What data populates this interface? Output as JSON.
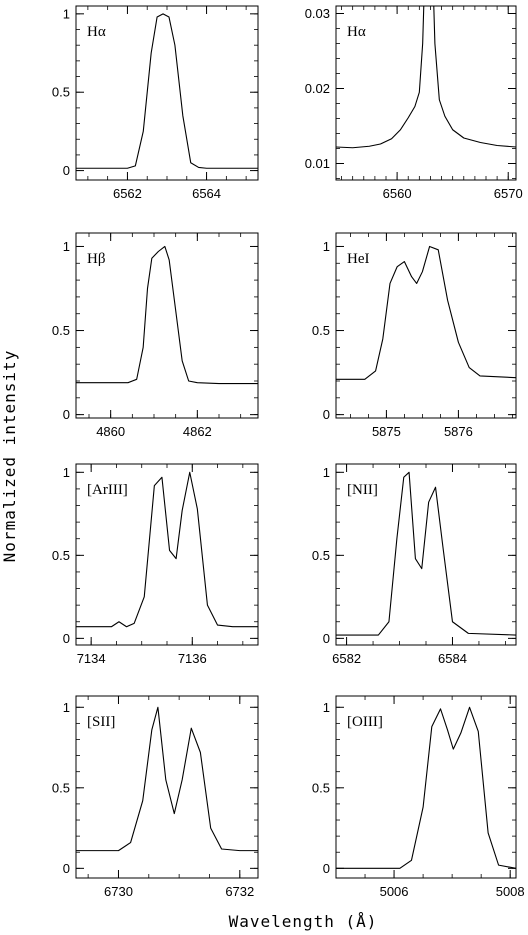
{
  "figure": {
    "ylabel": "Normalized intensity",
    "xlabel": "Wavelength (Å)"
  },
  "chart_data": [
    {
      "type": "line",
      "label": "Hα",
      "xlim": [
        6560.7,
        6565.3
      ],
      "ylim": [
        -0.06,
        1.05
      ],
      "xticks": [
        6562,
        6564
      ],
      "yticks": [
        0,
        0.5,
        1
      ],
      "ytick_labels": [
        "0",
        "0.5",
        "1"
      ],
      "x_minor": 0.5,
      "y_minor": 0.1,
      "x": [
        6560.7,
        6562.0,
        6562.2,
        6562.4,
        6562.6,
        6562.75,
        6562.9,
        6563.05,
        6563.2,
        6563.4,
        6563.6,
        6563.8,
        6564.0,
        6565.3
      ],
      "y": [
        0.015,
        0.015,
        0.03,
        0.25,
        0.75,
        0.98,
        1.0,
        0.98,
        0.8,
        0.35,
        0.05,
        0.02,
        0.015,
        0.015
      ]
    },
    {
      "type": "line",
      "label": "Hα",
      "xlim": [
        6554.5,
        6570.7
      ],
      "ylim": [
        0.0078,
        0.031
      ],
      "xticks": [
        6560,
        6570
      ],
      "yticks": [
        0.01,
        0.02,
        0.03
      ],
      "ytick_labels": [
        "0.01",
        "0.02",
        "0.03"
      ],
      "x_minor": 1,
      "y_minor": 0.002,
      "x": [
        6554.5,
        6556,
        6557.5,
        6558.5,
        6559.5,
        6560.3,
        6561.0,
        6561.6,
        6562.0,
        6562.3,
        6562.4,
        6563.3,
        6563.4,
        6563.8,
        6564.3,
        6565,
        6566,
        6567.5,
        6569,
        6570.7
      ],
      "y": [
        0.0122,
        0.0121,
        0.0123,
        0.0126,
        0.0133,
        0.0145,
        0.0161,
        0.0176,
        0.0195,
        0.026,
        0.031,
        0.031,
        0.026,
        0.0185,
        0.0163,
        0.0145,
        0.0134,
        0.0128,
        0.0124,
        0.0122
      ]
    },
    {
      "type": "line",
      "label": "Hβ",
      "xlim": [
        4859.2,
        4863.4
      ],
      "ylim": [
        -0.02,
        1.08
      ],
      "xticks": [
        4860,
        4862
      ],
      "yticks": [
        0,
        0.5,
        1
      ],
      "ytick_labels": [
        "0",
        "0.5",
        "1"
      ],
      "x_minor": 0.5,
      "y_minor": 0.1,
      "x": [
        4859.2,
        4860.4,
        4860.6,
        4860.75,
        4860.85,
        4860.95,
        4861.1,
        4861.25,
        4861.35,
        4861.5,
        4861.65,
        4861.8,
        4862.0,
        4862.5,
        4863.4
      ],
      "y": [
        0.19,
        0.19,
        0.21,
        0.4,
        0.75,
        0.93,
        0.97,
        1.0,
        0.92,
        0.62,
        0.32,
        0.2,
        0.19,
        0.185,
        0.185
      ]
    },
    {
      "type": "line",
      "label": "HeI",
      "xlim": [
        5874.3,
        5876.8
      ],
      "ylim": [
        -0.02,
        1.08
      ],
      "xticks": [
        5875,
        5876
      ],
      "yticks": [
        0,
        0.5,
        1
      ],
      "ytick_labels": [
        "0",
        "0.5",
        "1"
      ],
      "x_minor": 0.25,
      "y_minor": 0.1,
      "x": [
        5874.3,
        5874.7,
        5874.85,
        5874.95,
        5875.05,
        5875.15,
        5875.25,
        5875.35,
        5875.42,
        5875.5,
        5875.6,
        5875.72,
        5875.85,
        5876.0,
        5876.15,
        5876.3,
        5876.8
      ],
      "y": [
        0.21,
        0.21,
        0.26,
        0.45,
        0.78,
        0.88,
        0.91,
        0.82,
        0.78,
        0.85,
        1.0,
        0.98,
        0.68,
        0.43,
        0.28,
        0.23,
        0.22
      ]
    },
    {
      "type": "line",
      "label": "[ArIII]",
      "xlim": [
        7133.7,
        7137.3
      ],
      "ylim": [
        -0.04,
        1.05
      ],
      "xticks": [
        7134,
        7136
      ],
      "yticks": [
        0,
        0.5,
        1
      ],
      "ytick_labels": [
        "0",
        "0.5",
        "1"
      ],
      "x_minor": 0.5,
      "y_minor": 0.1,
      "x": [
        7133.7,
        7134.4,
        7134.55,
        7134.7,
        7134.85,
        7135.05,
        7135.25,
        7135.4,
        7135.55,
        7135.68,
        7135.8,
        7135.95,
        7136.1,
        7136.3,
        7136.5,
        7136.8,
        7137.3
      ],
      "y": [
        0.07,
        0.07,
        0.1,
        0.07,
        0.09,
        0.25,
        0.92,
        0.97,
        0.53,
        0.48,
        0.77,
        1.0,
        0.78,
        0.2,
        0.08,
        0.07,
        0.07
      ]
    },
    {
      "type": "line",
      "label": "[NII]",
      "xlim": [
        6581.8,
        6585.2
      ],
      "ylim": [
        -0.04,
        1.05
      ],
      "xticks": [
        6582,
        6584
      ],
      "yticks": [
        0,
        0.5,
        1
      ],
      "ytick_labels": [
        "0",
        "0.5",
        "1"
      ],
      "x_minor": 0.5,
      "y_minor": 0.1,
      "x": [
        6581.8,
        6582.6,
        6582.8,
        6582.95,
        6583.08,
        6583.18,
        6583.3,
        6583.42,
        6583.55,
        6583.68,
        6583.82,
        6584.0,
        6584.3,
        6585.2
      ],
      "y": [
        0.02,
        0.02,
        0.1,
        0.6,
        0.97,
        1.0,
        0.48,
        0.42,
        0.82,
        0.91,
        0.55,
        0.1,
        0.03,
        0.02
      ]
    },
    {
      "type": "line",
      "label": "[SII]",
      "xlim": [
        6729.3,
        6732.3
      ],
      "ylim": [
        -0.06,
        1.07
      ],
      "xticks": [
        6730,
        6732
      ],
      "yticks": [
        0,
        0.5,
        1
      ],
      "ytick_labels": [
        "0",
        "0.5",
        "1"
      ],
      "x_minor": 0.5,
      "y_minor": 0.1,
      "x": [
        6729.3,
        6730.0,
        6730.2,
        6730.4,
        6730.55,
        6730.65,
        6730.78,
        6730.92,
        6731.05,
        6731.2,
        6731.35,
        6731.52,
        6731.7,
        6732.0,
        6732.3
      ],
      "y": [
        0.11,
        0.11,
        0.16,
        0.42,
        0.86,
        1.0,
        0.55,
        0.34,
        0.55,
        0.87,
        0.72,
        0.25,
        0.12,
        0.11,
        0.11
      ]
    },
    {
      "type": "line",
      "label": "[OIII]",
      "xlim": [
        5005.0,
        5008.1
      ],
      "ylim": [
        -0.06,
        1.07
      ],
      "xticks": [
        5006,
        5008
      ],
      "yticks": [
        0,
        0.5,
        1
      ],
      "ytick_labels": [
        "0",
        "0.5",
        "1"
      ],
      "x_minor": 0.5,
      "y_minor": 0.1,
      "x": [
        5005.0,
        5006.1,
        5006.3,
        5006.5,
        5006.65,
        5006.8,
        5006.92,
        5007.02,
        5007.15,
        5007.3,
        5007.45,
        5007.62,
        5007.8,
        5008.1
      ],
      "y": [
        0.0,
        0.0,
        0.05,
        0.38,
        0.88,
        0.99,
        0.86,
        0.74,
        0.84,
        1.0,
        0.85,
        0.22,
        0.02,
        0.0
      ]
    }
  ]
}
